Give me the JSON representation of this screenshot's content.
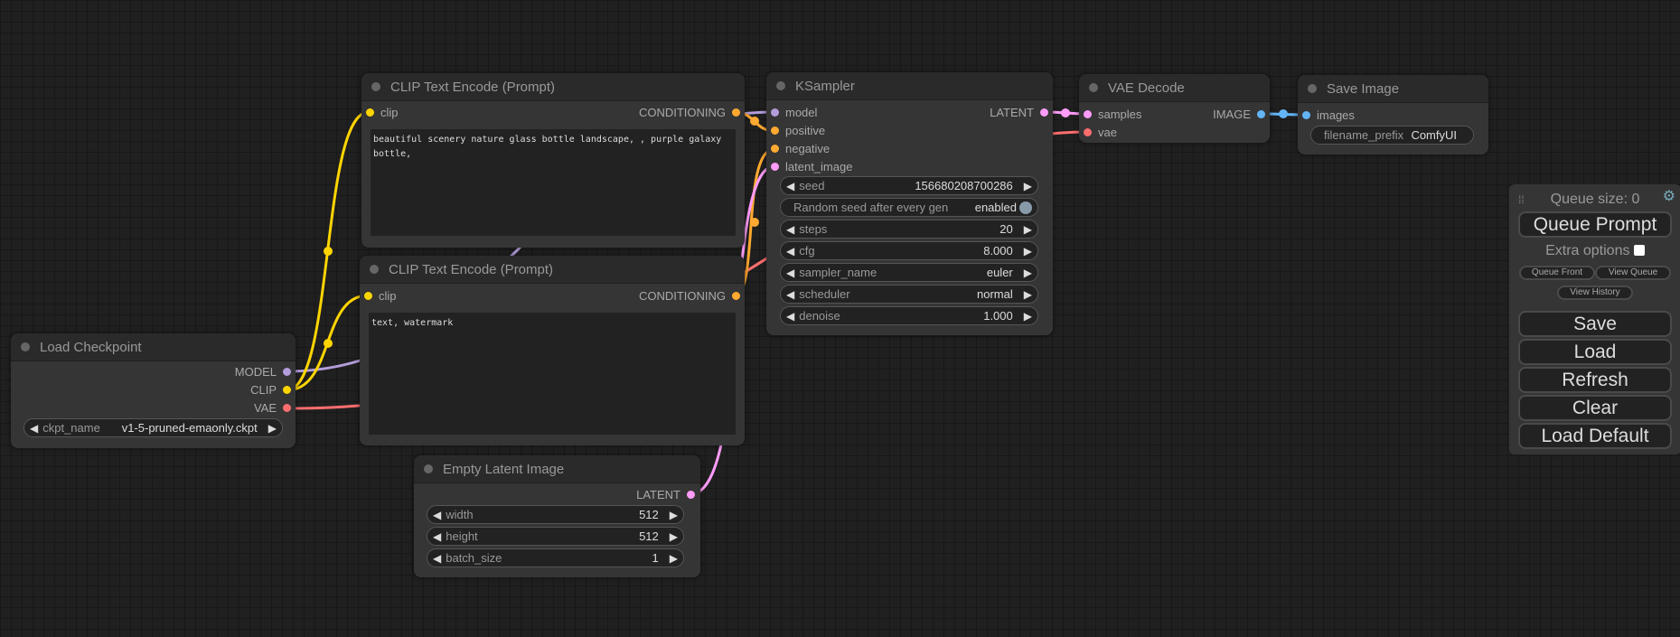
{
  "colors": {
    "model": "#b39ddb",
    "clip": "#ffd500",
    "vae": "#ff6e6e",
    "conditioning": "#ffa931",
    "latent": "#ff9cf9",
    "image": "#64b5f6"
  },
  "nodes": {
    "clip1": {
      "title": "CLIP Text Encode (Prompt)",
      "input": "clip",
      "output": "CONDITIONING",
      "text": "beautiful scenery nature glass bottle landscape, , purple galaxy bottle,"
    },
    "clip2": {
      "title": "CLIP Text Encode (Prompt)",
      "input": "clip",
      "output": "CONDITIONING",
      "text": "text, watermark"
    },
    "ckpt": {
      "title": "Load Checkpoint",
      "outputs": [
        "MODEL",
        "CLIP",
        "VAE"
      ],
      "widget": {
        "label": "ckpt_name",
        "value": "v1-5-pruned-emaonly.ckpt"
      }
    },
    "latent": {
      "title": "Empty Latent Image",
      "output": "LATENT",
      "widgets": [
        {
          "label": "width",
          "value": "512"
        },
        {
          "label": "height",
          "value": "512"
        },
        {
          "label": "batch_size",
          "value": "1"
        }
      ]
    },
    "ksampler": {
      "title": "KSampler",
      "inputs": [
        "model",
        "positive",
        "negative",
        "latent_image"
      ],
      "output": "LATENT",
      "seed": {
        "label": "seed",
        "value": "156680208700286"
      },
      "toggle": {
        "label": "Random seed after every gen",
        "value": "enabled"
      },
      "widgets": [
        {
          "label": "steps",
          "value": "20"
        },
        {
          "label": "cfg",
          "value": "8.000"
        },
        {
          "label": "sampler_name",
          "value": "euler"
        },
        {
          "label": "scheduler",
          "value": "normal"
        },
        {
          "label": "denoise",
          "value": "1.000"
        }
      ]
    },
    "vaedecode": {
      "title": "VAE Decode",
      "inputs": [
        "samples",
        "vae"
      ],
      "output": "IMAGE"
    },
    "save": {
      "title": "Save Image",
      "input": "images",
      "widget": {
        "label": "filename_prefix",
        "value": "ComfyUI"
      }
    }
  },
  "panel": {
    "queue_size": "Queue size: 0",
    "queue_prompt": "Queue Prompt",
    "extra_options": "Extra options",
    "queue_front": "Queue Front",
    "view_queue": "View Queue",
    "view_history": "View History",
    "save": "Save",
    "load": "Load",
    "refresh": "Refresh",
    "clear": "Clear",
    "load_default": "Load Default"
  }
}
